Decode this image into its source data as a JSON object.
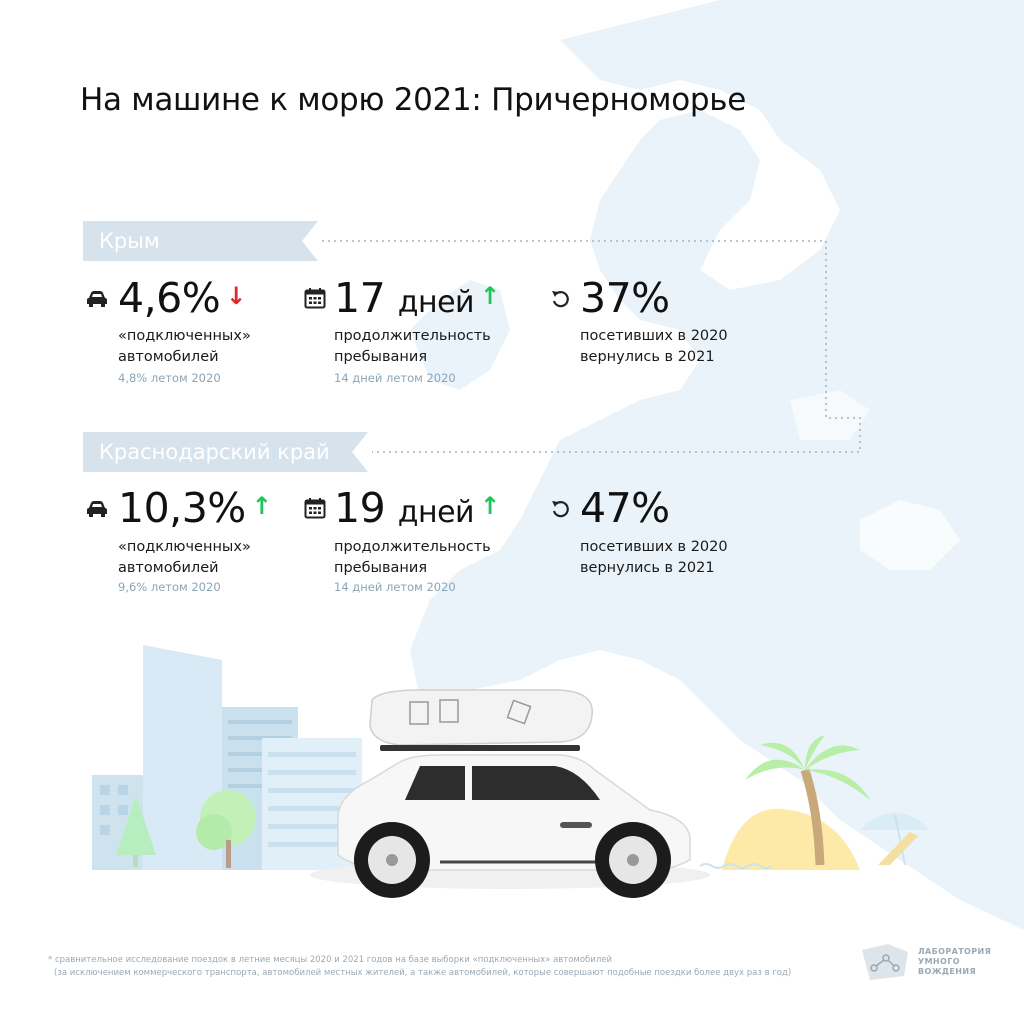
{
  "title": "На машине к морю 2021: Причерноморье",
  "colors": {
    "ribbon": "#d6e3ec",
    "map": "#eaf3f9",
    "up": "#22c35a",
    "down": "#e3262b",
    "muted": "#8aa5b8"
  },
  "regions": [
    {
      "name": "Крым",
      "cars": {
        "value": "4,6%",
        "trend": "down",
        "arrow": "↓",
        "label_1": "«подключенных»",
        "label_2": "автомобилей",
        "previous": "4,8% летом 2020"
      },
      "stay": {
        "value": "17",
        "unit": "дней",
        "trend": "up",
        "arrow": "↑",
        "label_1": "продолжительность",
        "label_2": "пребывания",
        "previous": "14 дней летом 2020"
      },
      "returned": {
        "value": "37%",
        "label_1": "посетивших в 2020",
        "label_2": "вернулись в 2021"
      }
    },
    {
      "name": "Краснодарский край",
      "cars": {
        "value": "10,3%",
        "trend": "up",
        "arrow": "↑",
        "label_1": "«подключенных»",
        "label_2": "автомобилей",
        "previous": "9,6% летом 2020"
      },
      "stay": {
        "value": "19",
        "unit": "дней",
        "trend": "up",
        "arrow": "↑",
        "label_1": "продолжительность",
        "label_2": "пребывания",
        "previous": "14 дней летом 2020"
      },
      "returned": {
        "value": "47%",
        "label_1": "посетивших в 2020",
        "label_2": "вернулись в 2021"
      }
    }
  ],
  "icons": {
    "cars": "car-icon",
    "stay": "calendar-icon",
    "returned": "return-arrow-icon"
  },
  "footnote": {
    "line_1": "* сравнительное исследование поездок в летние месяцы 2020 и 2021 годов на базе выборки «подключенных» автомобилей",
    "line_2": "(за исключением коммерческого транспорта, автомобилей местных жителей, а также автомобилей, которые совершают подобные поездки более двух раз в год)"
  },
  "logo": {
    "line_1": "ЛАБОРАТОРИЯ",
    "line_2": "УМНОГО",
    "line_3": "ВОЖДЕНИЯ"
  }
}
